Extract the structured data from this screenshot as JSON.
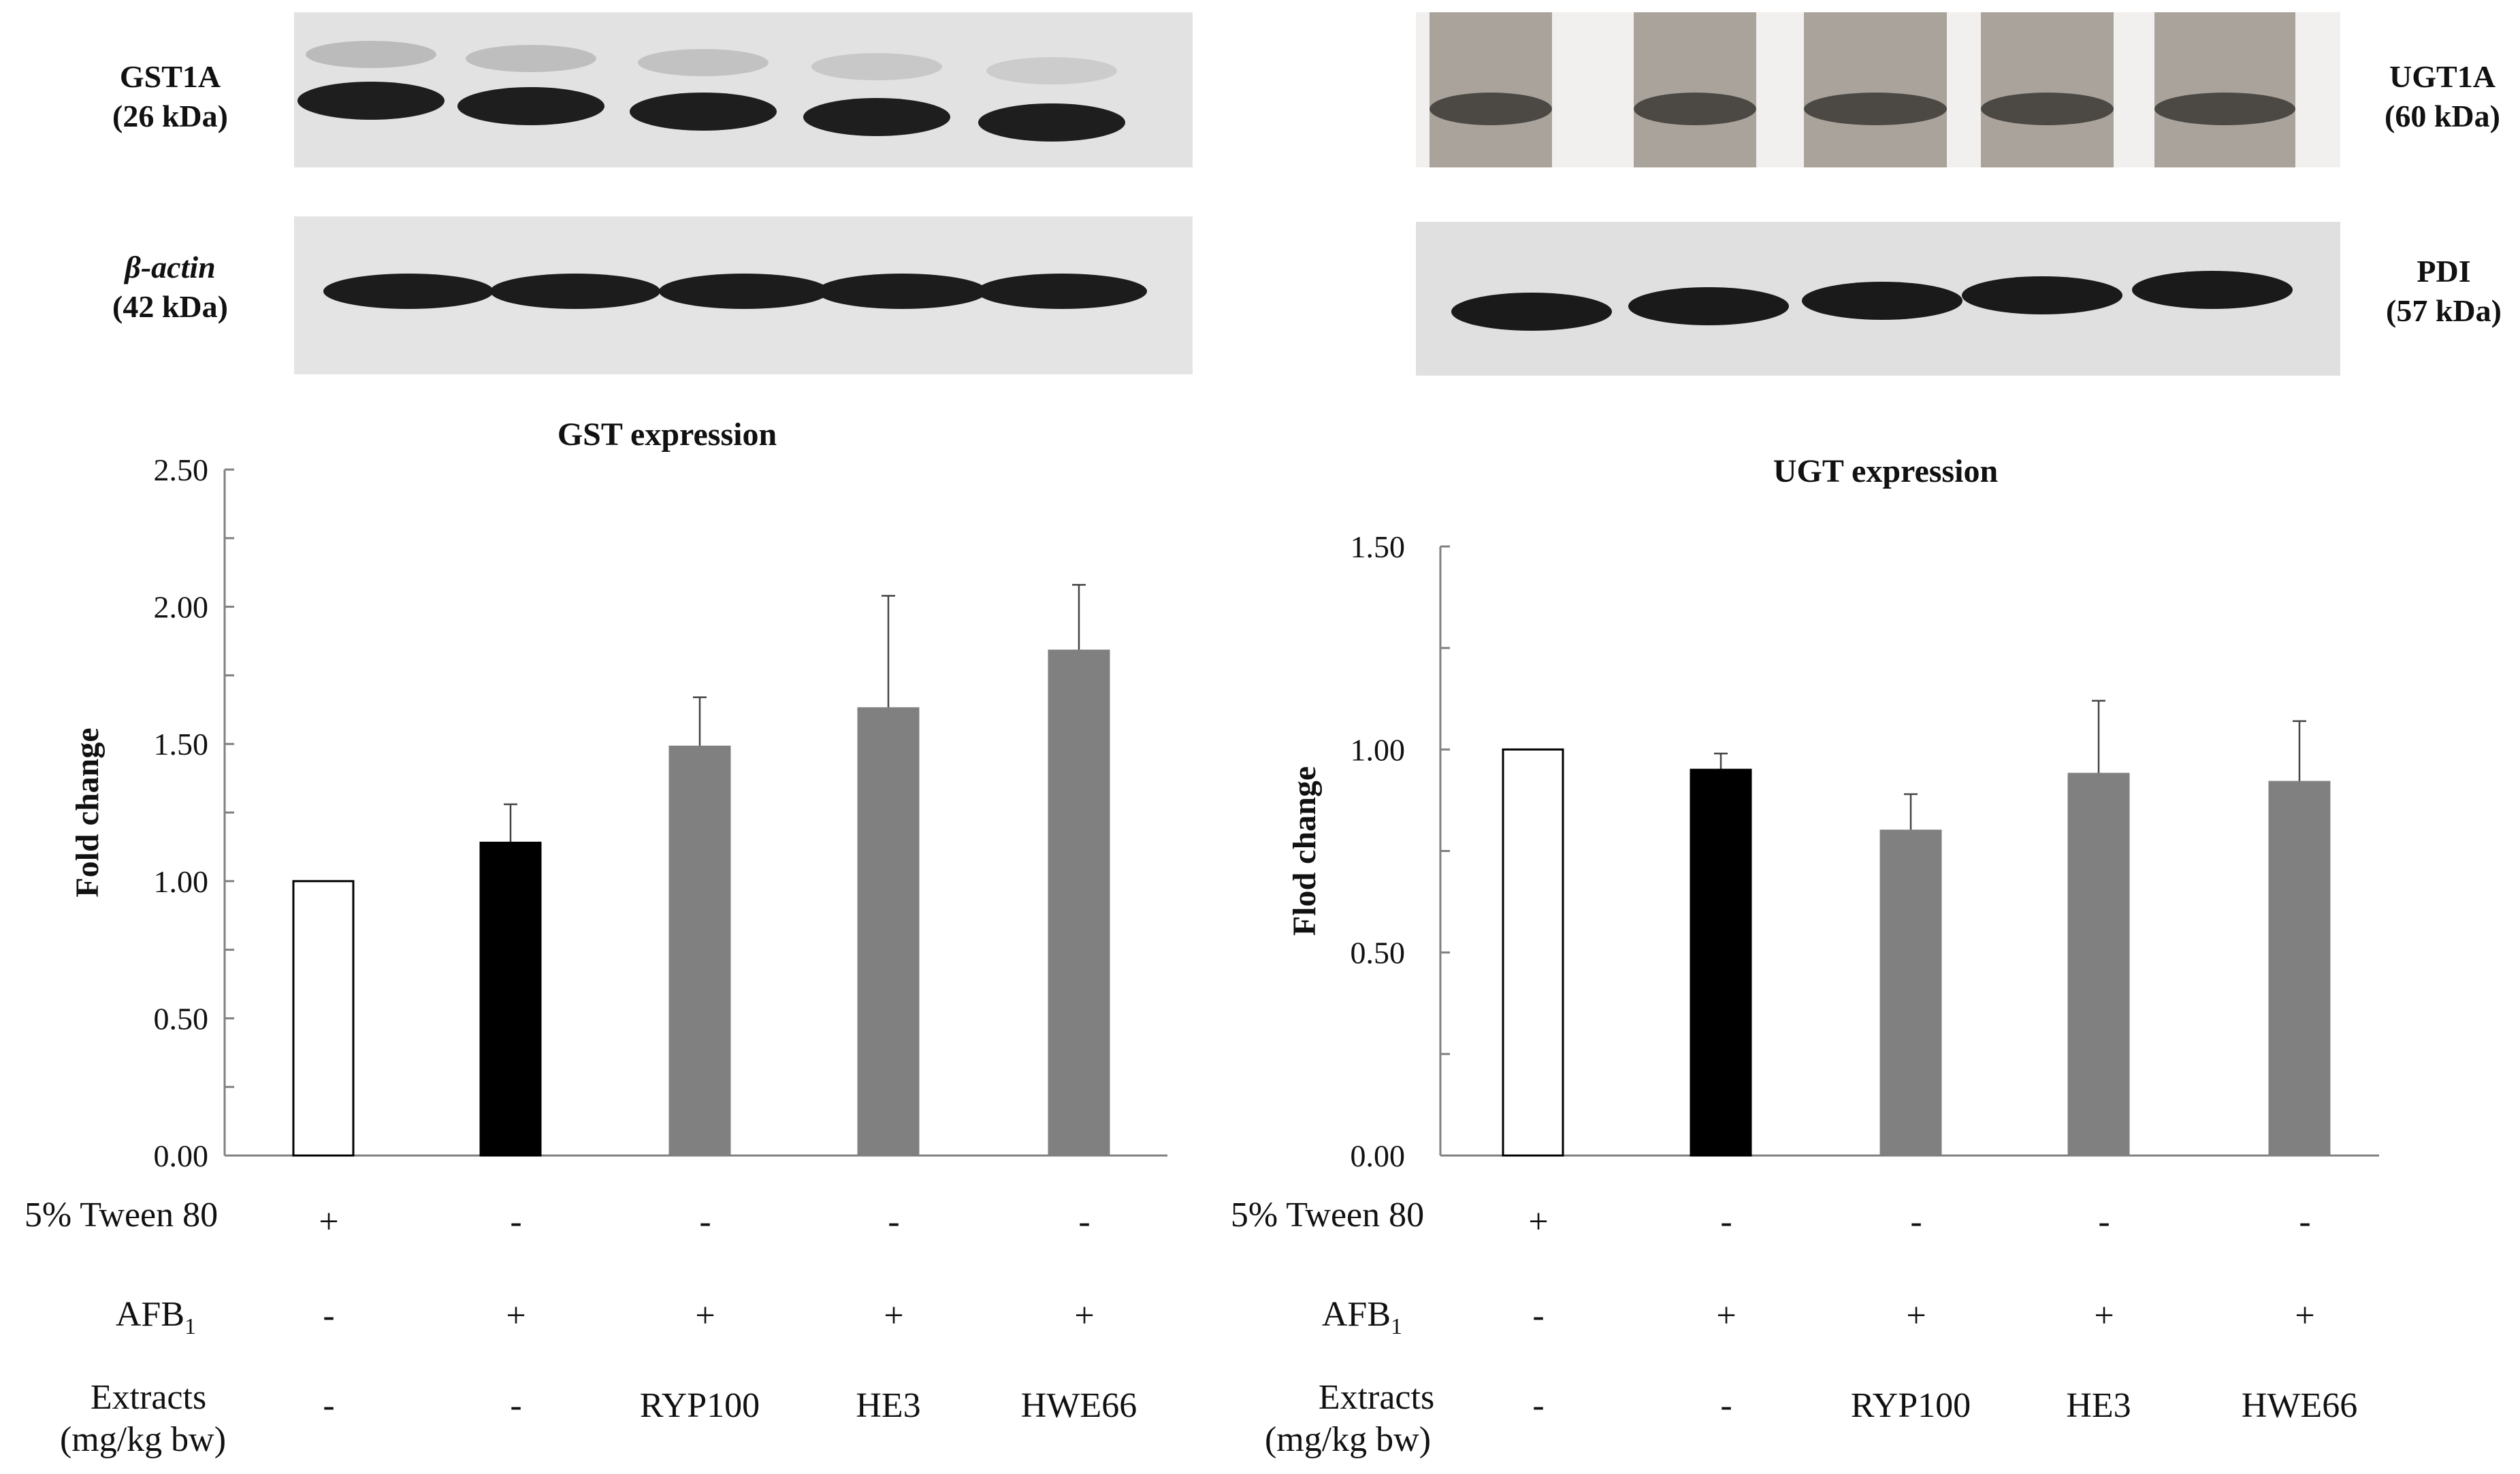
{
  "colors": {
    "control": "#ffffff",
    "afb1": "#000000",
    "extract": "#808080",
    "axis": "#808080",
    "blot_bg": "#e4e4e4",
    "band": "#1a1a1a"
  },
  "blots": {
    "gst1a": {
      "name": "GST1A",
      "size": "(26 kDa)",
      "lanes": 5
    },
    "beta_actin": {
      "name": "β-actin",
      "size": "(42 kDa)",
      "lanes": 5
    },
    "ugt1a": {
      "name": "UGT1A",
      "size": "(60 kDa)",
      "lanes": 5
    },
    "pdi": {
      "name": "PDI",
      "size": "(57 kDa)",
      "lanes": 5
    }
  },
  "conditions": {
    "tween_label": "5% Tween 80",
    "afb1_label": "AFB",
    "afb1_sub": "1",
    "extracts_label": "Extracts",
    "extracts_unit": "(mg/kg bw)",
    "tween": [
      "+",
      "-",
      "-",
      "-",
      "-"
    ],
    "afb1": [
      "-",
      "+",
      "+",
      "+",
      "+"
    ],
    "extracts": [
      "-",
      "-",
      "RYP100",
      "HE3",
      "HWE66"
    ]
  },
  "chart_data": [
    {
      "type": "bar",
      "title": "GST expression",
      "xlabel": "",
      "ylabel": "Fold change",
      "ylim": [
        0,
        2.5
      ],
      "yticks": [
        "0.00",
        "0.50",
        "1.00",
        "1.50",
        "2.00",
        "2.50"
      ],
      "grid": false,
      "categories": [
        "",
        "",
        "",
        "",
        ""
      ],
      "values": [
        1.0,
        1.14,
        1.49,
        1.63,
        1.84
      ],
      "errors": [
        0.0,
        0.14,
        0.18,
        0.41,
        0.24
      ],
      "bar_colors": [
        "#ffffff",
        "#000000",
        "#808080",
        "#808080",
        "#808080"
      ]
    },
    {
      "type": "bar",
      "title": "UGT expression",
      "xlabel": "",
      "ylabel": "Flod change",
      "ylim": [
        0,
        1.5
      ],
      "yticks": [
        "0.00",
        "0.50",
        "1.00",
        "1.50"
      ],
      "grid": false,
      "categories": [
        "",
        "",
        "",
        "",
        ""
      ],
      "values": [
        1.0,
        0.95,
        0.8,
        0.94,
        0.92
      ],
      "errors": [
        0.0,
        0.04,
        0.09,
        0.18,
        0.15
      ],
      "bar_colors": [
        "#ffffff",
        "#000000",
        "#808080",
        "#808080",
        "#808080"
      ]
    }
  ]
}
